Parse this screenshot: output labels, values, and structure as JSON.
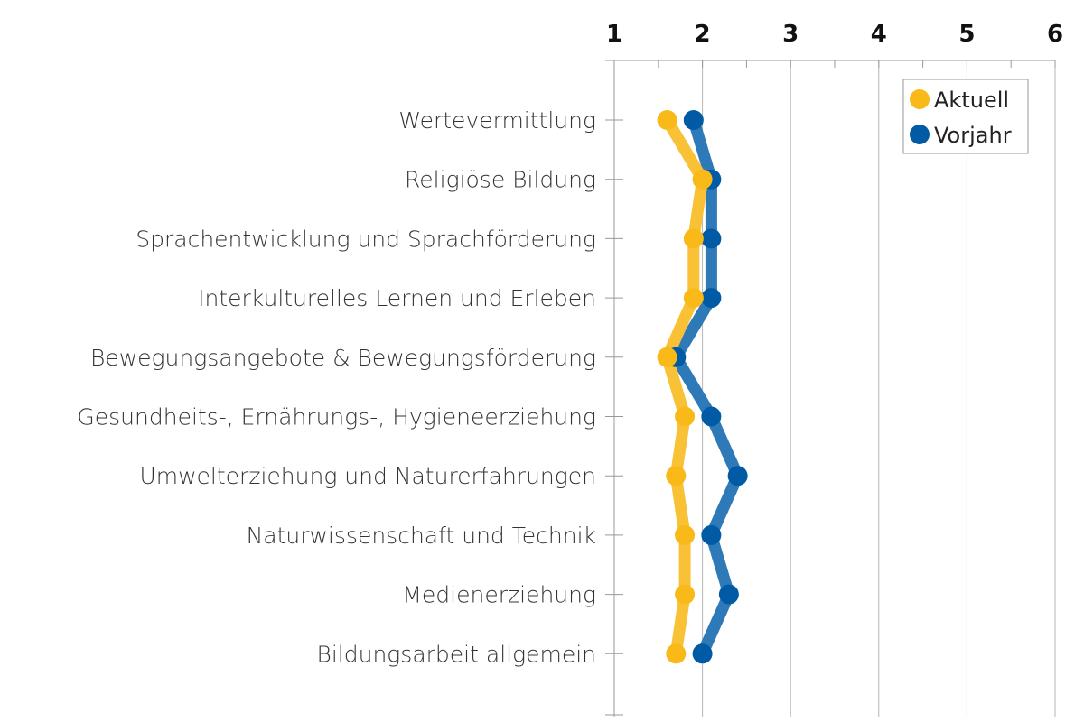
{
  "chart_data": {
    "type": "line",
    "orientation": "horizontal",
    "categories": [
      "Wertevermittlung",
      "Religiöse Bildung",
      "Sprachentwicklung und Sprachförderung",
      "Interkulturelles Lernen und Erleben",
      "Bewegungsangebote & Bewegungsförderung",
      "Gesundheits-, Ernährungs-, Hygieneerziehung",
      "Umwelterziehung und Naturerfahrungen",
      "Naturwissenschaft und Technik",
      "Medienerziehung",
      "Bildungsarbeit allgemein"
    ],
    "series": [
      {
        "name": "Aktuell",
        "color": "#F9B918",
        "line_color": "#F9C135",
        "values": [
          1.6,
          2.0,
          1.9,
          1.9,
          1.6,
          1.8,
          1.7,
          1.8,
          1.8,
          1.7
        ]
      },
      {
        "name": "Vorjahr",
        "color": "#005BA4",
        "line_color": "#2E7AB9",
        "values": [
          1.9,
          2.1,
          2.1,
          2.1,
          1.7,
          2.1,
          2.4,
          2.1,
          2.3,
          2.0
        ]
      }
    ],
    "xlim": [
      1,
      6
    ],
    "xticks": [
      "1",
      "2",
      "3",
      "4",
      "5",
      "6"
    ],
    "grid": true,
    "legend": {
      "position": "top-right",
      "entries": [
        "Aktuell",
        "Vorjahr"
      ]
    }
  }
}
